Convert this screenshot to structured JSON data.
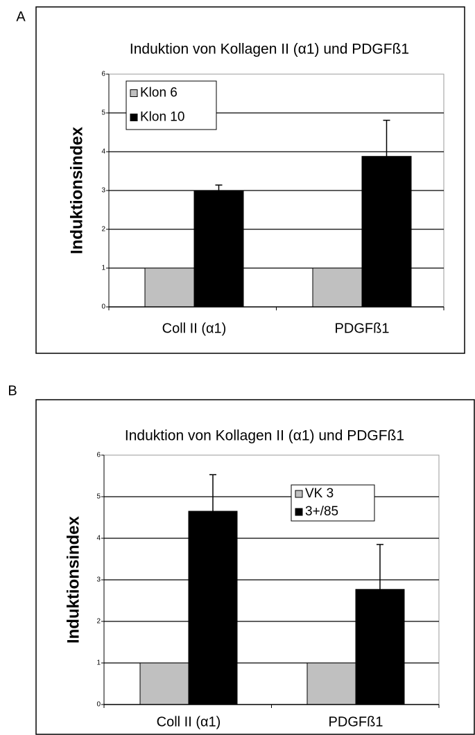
{
  "chart_data": [
    {
      "type": "bar",
      "panel": "A",
      "title": "Induktion von Kollagen II (α1) und PDGFß1",
      "ylabel": "Induktionsindex",
      "categories": [
        "Coll II (α1)",
        "PDGFß1"
      ],
      "series": [
        {
          "name": "Klon 6",
          "color": "#c0c0c0",
          "values": [
            1,
            1
          ],
          "errors": [
            0,
            0
          ]
        },
        {
          "name": "Klon 10",
          "color": "#000000",
          "values": [
            3.0,
            3.88
          ],
          "errors": [
            0.14,
            0.93
          ]
        }
      ],
      "ylim": [
        0,
        6
      ],
      "yticks": [
        0,
        1,
        2,
        3,
        4,
        5,
        6
      ],
      "grid": true,
      "legend": "upper left"
    },
    {
      "type": "bar",
      "panel": "B",
      "title": "Induktion  von Kollagen II (α1) und PDGFß1",
      "ylabel": "Induktionsindex",
      "categories": [
        "Coll II (α1)",
        "PDGFß1"
      ],
      "series": [
        {
          "name": "VK 3",
          "color": "#c0c0c0",
          "values": [
            1,
            1
          ],
          "errors": [
            0,
            0
          ]
        },
        {
          "name": "3+/85",
          "color": "#000000",
          "values": [
            4.65,
            2.77
          ],
          "errors": [
            0.88,
            1.08
          ]
        }
      ],
      "ylim": [
        0,
        6
      ],
      "yticks": [
        0,
        1,
        2,
        3,
        4,
        5,
        6
      ],
      "grid": true,
      "legend": "upper right"
    }
  ]
}
